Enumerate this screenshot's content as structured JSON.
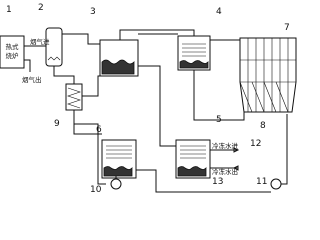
{
  "labels": {
    "furnace": [
      "热式",
      "烧炉"
    ],
    "flue_in": "烟气进",
    "flue_out": "烟气出",
    "chilled_in": "冷冻水进",
    "chilled_out": "冷冻水出"
  },
  "numbers": [
    "1",
    "2",
    "3",
    "4",
    "5",
    "6",
    "7",
    "8",
    "9",
    "10",
    "11",
    "12",
    "13"
  ]
}
